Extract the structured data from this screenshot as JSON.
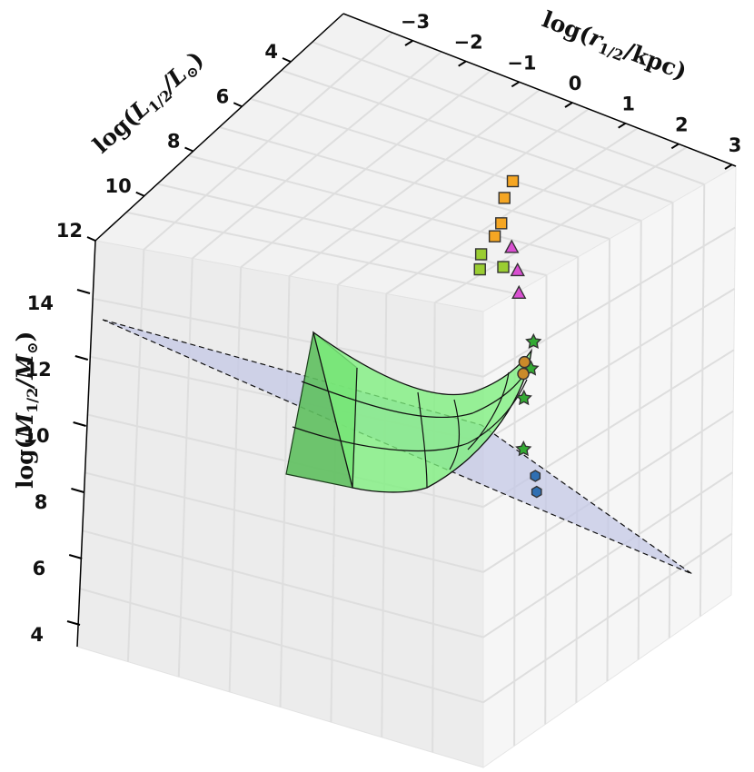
{
  "chart_data": {
    "type": "scatter",
    "projection": "3d",
    "axes": {
      "x": {
        "label_parts": [
          "log(",
          "r",
          "1/2",
          "/kpc)"
        ],
        "ticks": [
          "−3",
          "−2",
          "−1",
          "0",
          "1",
          "2",
          "3"
        ],
        "range": [
          -3,
          3
        ]
      },
      "y": {
        "label_parts": [
          "log(",
          "L",
          "1/2",
          "/L",
          "⊙",
          ")"
        ],
        "ticks": [
          "4",
          "6",
          "8",
          "10",
          "12"
        ],
        "range": [
          4,
          12
        ]
      },
      "z": {
        "label_parts": [
          "log(",
          "M",
          "1/2",
          "/M",
          "⊙",
          ")"
        ],
        "ticks": [
          "4",
          "6",
          "8",
          "10",
          "12",
          "14"
        ],
        "range": [
          4,
          14
        ]
      }
    },
    "grid": true,
    "elements": [
      "shaded fundamental plane (dashed outline)",
      "curved green surface with grid lines"
    ],
    "series": [
      {
        "marker": "square",
        "color": "#f5a623",
        "points": [
          [
            1.3,
            11.0,
            11.4
          ],
          [
            1.6,
            11.4,
            11.8
          ],
          [
            1.9,
            11.6,
            12.0
          ],
          [
            1.1,
            10.9,
            11.2
          ]
        ]
      },
      {
        "marker": "square",
        "color": "#9acd32",
        "points": [
          [
            0.6,
            10.6,
            10.7
          ],
          [
            0.8,
            10.9,
            10.9
          ],
          [
            1.0,
            10.4,
            10.5
          ]
        ]
      },
      {
        "marker": "triangle",
        "color": "#d94fd1",
        "points": [
          [
            1.2,
            10.2,
            10.3
          ],
          [
            1.0,
            9.8,
            9.9
          ],
          [
            1.3,
            10.6,
            10.8
          ]
        ]
      },
      {
        "marker": "star",
        "color": "#33aa33",
        "points": [
          [
            -1.2,
            5.8,
            8.2
          ],
          [
            -0.5,
            7.0,
            8.8
          ],
          [
            0.0,
            7.6,
            9.1
          ],
          [
            0.4,
            8.2,
            9.4
          ]
        ]
      },
      {
        "marker": "hexagon",
        "color": "#2f6fb2",
        "points": [
          [
            -1.6,
            4.6,
            7.6
          ],
          [
            -1.4,
            5.0,
            7.8
          ]
        ]
      },
      {
        "marker": "circle",
        "color": "#c98a2a",
        "points": [
          [
            -0.4,
            7.2,
            9.4
          ],
          [
            -0.2,
            7.5,
            9.5
          ]
        ]
      }
    ]
  }
}
